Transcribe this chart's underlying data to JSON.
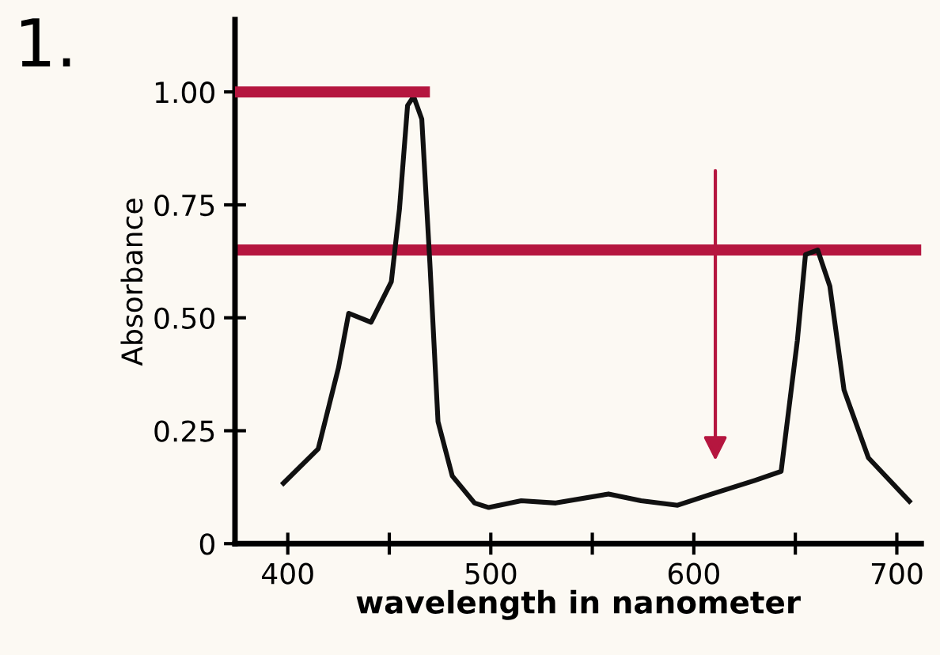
{
  "chart_data": {
    "type": "line",
    "xlabel": "wavelength in nanometer",
    "ylabel": "Absorbance",
    "annotations": [
      "1."
    ],
    "series": [
      {
        "color": "#111111",
        "x": [
          397,
          415,
          425,
          430,
          441,
          451,
          455,
          459,
          462,
          466,
          470,
          474,
          481,
          492,
          499,
          515,
          532,
          558,
          574,
          592,
          609,
          630,
          643,
          651,
          655,
          661,
          667,
          674,
          686,
          707
        ],
        "values": [
          0.13,
          0.21,
          0.39,
          0.51,
          0.49,
          0.58,
          0.74,
          0.97,
          0.99,
          0.94,
          0.62,
          0.27,
          0.15,
          0.09,
          0.08,
          0.095,
          0.09,
          0.11,
          0.095,
          0.085,
          0.11,
          0.14,
          0.16,
          0.45,
          0.64,
          0.65,
          0.57,
          0.34,
          0.19,
          0.09
        ]
      },
      {
        "color": "#b5163f",
        "x": [
          374,
          470
        ],
        "values": [
          1.0,
          1.0
        ]
      }
    ],
    "ref_lines": [
      {
        "axis": "y",
        "value": 0.65,
        "color": "#b5163f"
      }
    ],
    "xlim": [
      374,
      712
    ],
    "ylim": [
      0,
      1.16
    ],
    "xticks": [
      400,
      {
        "value": 450,
        "label": null
      },
      500,
      {
        "value": 550,
        "label": null
      },
      600,
      {
        "value": 650,
        "label": null
      },
      700
    ],
    "yticks": [
      0,
      0.25,
      {
        "value": 0.5,
        "label": "0.50"
      },
      0.75,
      {
        "value": 1.0,
        "label": "1.00"
      }
    ],
    "grid": false,
    "legend": false
  }
}
